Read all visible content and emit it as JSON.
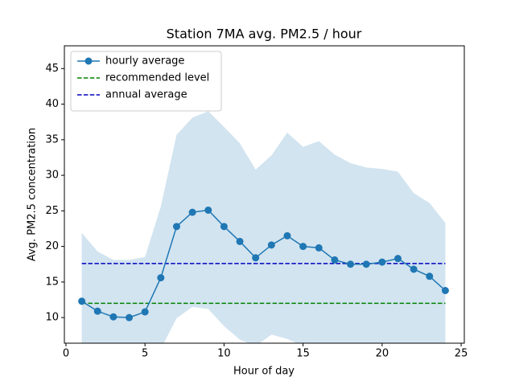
{
  "chart_data": {
    "type": "line",
    "title": "Station 7MA avg. PM2.5 / hour",
    "xlabel": "Hour of day",
    "ylabel": "Avg. PM2.5 concentration",
    "x": [
      1,
      2,
      3,
      4,
      5,
      6,
      7,
      8,
      9,
      10,
      11,
      12,
      13,
      14,
      15,
      16,
      17,
      18,
      19,
      20,
      21,
      22,
      23,
      24
    ],
    "series": [
      {
        "name": "hourly average",
        "color": "#1f77b4",
        "values": [
          12.3,
          10.9,
          10.1,
          10.0,
          10.8,
          15.6,
          22.8,
          24.8,
          25.1,
          22.8,
          20.7,
          18.4,
          20.2,
          21.5,
          20.0,
          19.8,
          18.1,
          17.5,
          17.5,
          17.8,
          18.3,
          16.8,
          15.8,
          13.8
        ]
      }
    ],
    "band": {
      "color": "#1f77b4",
      "upper": [
        21.9,
        19.3,
        18.1,
        18.1,
        18.5,
        25.6,
        35.7,
        38.1,
        39.0,
        36.8,
        34.5,
        30.8,
        32.8,
        36.0,
        34.0,
        34.8,
        32.9,
        31.7,
        31.1,
        30.9,
        30.5,
        27.5,
        26.1,
        23.3
      ],
      "lower": [
        2.7,
        2.5,
        2.1,
        1.9,
        3.1,
        5.6,
        9.9,
        11.5,
        11.2,
        8.8,
        6.9,
        6.0,
        7.6,
        7.0,
        6.0,
        4.8,
        3.3,
        3.3,
        3.9,
        4.7,
        6.1,
        6.1,
        5.5,
        4.3
      ]
    },
    "reference_lines": [
      {
        "name": "recommended level",
        "value": 12,
        "color": "#008000"
      },
      {
        "name": "annual average",
        "value": 17.6,
        "color": "#0000bf"
      }
    ],
    "xlim": [
      -0.1,
      25.2
    ],
    "xticks": [
      0,
      5,
      10,
      15,
      20,
      25
    ],
    "ylim": [
      6.4,
      48.2
    ],
    "yticks": [
      10,
      15,
      20,
      25,
      30,
      35,
      40,
      45
    ],
    "grid": false,
    "legend": "upper left"
  }
}
